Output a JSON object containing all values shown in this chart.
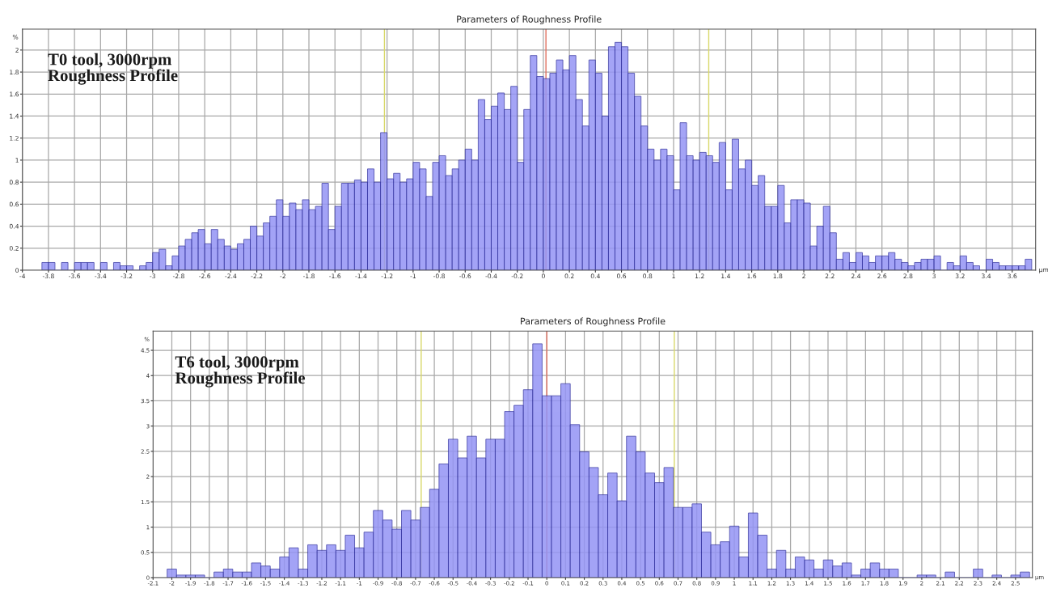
{
  "chart_data": [
    {
      "type": "histogram",
      "title": "Parameters of Roughness Profile",
      "xlabel": "μm",
      "ylabel": "%",
      "annotations": [
        "T0 tool, 3000rpm\nRoughness Profile"
      ],
      "color": "#9494f5",
      "bins": [
        -3.85,
        -3.8,
        -3.75,
        -3.7,
        -3.65,
        -3.6,
        -3.55,
        -3.5,
        -3.45,
        -3.4,
        -3.35,
        -3.3,
        -3.25,
        -3.2,
        -3.15,
        -3.1,
        -3.05,
        -3,
        -2.95,
        -2.9,
        -2.85,
        -2.8,
        -2.75,
        -2.7,
        -2.65,
        -2.6,
        -2.55,
        -2.5,
        -2.45,
        -2.4,
        -2.35,
        -2.3,
        -2.25,
        -2.2,
        -2.15,
        -2.1,
        -2.05,
        -2,
        -1.95,
        -1.9,
        -1.85,
        -1.8,
        -1.75,
        -1.7,
        -1.65,
        -1.6,
        -1.55,
        -1.5,
        -1.45,
        -1.4,
        -1.35,
        -1.3,
        -1.25,
        -1.2,
        -1.15,
        -1.1,
        -1.05,
        -1,
        -0.95,
        -0.9,
        -0.85,
        -0.8,
        -0.75,
        -0.7,
        -0.65,
        -0.6,
        -0.55,
        -0.5,
        -0.45,
        -0.4,
        -0.35,
        -0.3,
        -0.25,
        -0.2,
        -0.15,
        -0.1,
        -0.05,
        0,
        0.05,
        0.1,
        0.15,
        0.2,
        0.25,
        0.3,
        0.35,
        0.4,
        0.45,
        0.5,
        0.55,
        0.6,
        0.65,
        0.7,
        0.75,
        0.8,
        0.85,
        0.9,
        0.95,
        1,
        1.05,
        1.1,
        1.15,
        1.2,
        1.25,
        1.3,
        1.35,
        1.4,
        1.45,
        1.5,
        1.55,
        1.6,
        1.65,
        1.7,
        1.75,
        1.8,
        1.85,
        1.9,
        1.95,
        2,
        2.05,
        2.1,
        2.15,
        2.2,
        2.25,
        2.3,
        2.35,
        2.4,
        2.45,
        2.5,
        2.55,
        2.6,
        2.65,
        2.7,
        2.75,
        2.8,
        2.85,
        2.9,
        2.95,
        3,
        3.05,
        3.1,
        3.15,
        3.2,
        3.25,
        3.3,
        3.35,
        3.4,
        3.45,
        3.5,
        3.55,
        3.6,
        3.65,
        3.7,
        3.75
      ],
      "values": [
        0.07,
        0.07,
        0,
        0.07,
        0,
        0.07,
        0.07,
        0.07,
        0,
        0.07,
        0,
        0.07,
        0.04,
        0.04,
        0,
        0.04,
        0.07,
        0.16,
        0.19,
        0.04,
        0.13,
        0.22,
        0.28,
        0.34,
        0.37,
        0.24,
        0.37,
        0.28,
        0.22,
        0.19,
        0.24,
        0.28,
        0.4,
        0.31,
        0.43,
        0.49,
        0.64,
        0.49,
        0.61,
        0.55,
        0.64,
        0.55,
        0.58,
        0.79,
        0.37,
        0.58,
        0.79,
        0.79,
        0.82,
        0.8,
        0.92,
        0.8,
        1.25,
        0.83,
        0.88,
        0.8,
        0.83,
        0.98,
        0.92,
        0.67,
        0.98,
        1.04,
        0.86,
        0.92,
        1,
        1.1,
        1,
        1.55,
        1.37,
        1.49,
        1.61,
        1.46,
        1.67,
        0.98,
        1.46,
        1.95,
        1.76,
        1.74,
        1.79,
        1.91,
        1.82,
        1.95,
        1.55,
        1.31,
        1.91,
        1.79,
        1.4,
        2.03,
        2.07,
        2.03,
        1.79,
        1.58,
        1.31,
        1.1,
        1,
        1.1,
        1.04,
        0.73,
        1.34,
        1.04,
        1,
        1.07,
        1.04,
        0.98,
        1.16,
        0.73,
        1.19,
        0.92,
        1,
        0.77,
        0.86,
        0.58,
        0.58,
        0.77,
        0.43,
        0.64,
        0.64,
        0.61,
        0.22,
        0.4,
        0.58,
        0.34,
        0.1,
        0.16,
        0.07,
        0.16,
        0.13,
        0.07,
        0.13,
        0.13,
        0.16,
        0.1,
        0.07,
        0.04,
        0.07,
        0.1,
        0.1,
        0.13,
        0,
        0.07,
        0.04,
        0.13,
        0.07,
        0.04,
        0,
        0.1,
        0.07,
        0.04,
        0.04,
        0.04,
        0.04,
        0.1
      ],
      "xlim": [
        -4,
        3.78
      ],
      "ylim": [
        0,
        2.19
      ],
      "xticks": [
        -4,
        -3.8,
        -3.6,
        -3.4,
        -3.2,
        -3,
        -2.8,
        -2.6,
        -2.4,
        -2.2,
        -2,
        -1.8,
        -1.6,
        -1.4,
        -1.2,
        -1,
        -0.8,
        -0.6,
        -0.4,
        -0.2,
        0,
        0.2,
        0.4,
        0.6,
        0.8,
        1,
        1.2,
        1.4,
        1.6,
        1.8,
        2,
        2.2,
        2.4,
        2.6,
        2.8,
        3,
        3.2,
        3.4,
        3.6
      ],
      "yticks": [
        0,
        0.2,
        0.4,
        0.6,
        0.8,
        1,
        1.2,
        1.4,
        1.6,
        1.8,
        2
      ],
      "grid": true,
      "ref_lines": [
        {
          "axis": "x",
          "value": -1.22,
          "color": "#d8d86a"
        },
        {
          "axis": "x",
          "value": 0.02,
          "color": "#e07060"
        },
        {
          "axis": "x",
          "value": 1.27,
          "color": "#d8d86a"
        }
      ]
    },
    {
      "type": "histogram",
      "title": "Parameters of Roughness Profile",
      "xlabel": "μm",
      "ylabel": "%",
      "annotations": [
        "T6 tool, 3000rpm\nRoughness Profile"
      ],
      "color": "#9494f5",
      "bins": [
        -2.025,
        -1.975,
        -1.925,
        -1.875,
        -1.825,
        -1.775,
        -1.725,
        -1.675,
        -1.625,
        -1.575,
        -1.525,
        -1.475,
        -1.425,
        -1.375,
        -1.325,
        -1.275,
        -1.225,
        -1.175,
        -1.125,
        -1.075,
        -1.025,
        -0.975,
        -0.925,
        -0.875,
        -0.825,
        -0.775,
        -0.725,
        -0.675,
        -0.625,
        -0.575,
        -0.525,
        -0.475,
        -0.425,
        -0.375,
        -0.325,
        -0.275,
        -0.225,
        -0.175,
        -0.125,
        -0.075,
        -0.025,
        0.025,
        0.075,
        0.125,
        0.175,
        0.225,
        0.275,
        0.325,
        0.375,
        0.425,
        0.475,
        0.525,
        0.575,
        0.625,
        0.675,
        0.725,
        0.775,
        0.825,
        0.875,
        0.925,
        0.975,
        1.025,
        1.075,
        1.125,
        1.175,
        1.225,
        1.275,
        1.325,
        1.375,
        1.425,
        1.475,
        1.525,
        1.575,
        1.625,
        1.675,
        1.725,
        1.775,
        1.825,
        1.875,
        1.925,
        1.975,
        2.025,
        2.075,
        2.125,
        2.175,
        2.225,
        2.275,
        2.325,
        2.375,
        2.425,
        2.475,
        2.525,
        2.575
      ],
      "values": [
        0.17,
        0.05,
        0.05,
        0.05,
        0,
        0.11,
        0.17,
        0.11,
        0.11,
        0.29,
        0.23,
        0.17,
        0.41,
        0.59,
        0.17,
        0.65,
        0.54,
        0.65,
        0.54,
        0.84,
        0.59,
        0.9,
        1.33,
        1.14,
        0.96,
        1.33,
        1.14,
        1.39,
        1.75,
        2.25,
        2.74,
        2.37,
        2.8,
        2.37,
        2.74,
        2.74,
        3.29,
        3.41,
        3.72,
        4.63,
        3.6,
        3.6,
        3.84,
        3.03,
        2.49,
        2.18,
        1.64,
        2.07,
        1.52,
        2.8,
        2.49,
        2.07,
        1.88,
        2.18,
        1.39,
        1.39,
        1.46,
        0.9,
        0.65,
        0.71,
        1.02,
        0.41,
        1.28,
        0.84,
        0.17,
        0.54,
        0.17,
        0.41,
        0.35,
        0.17,
        0.35,
        0.23,
        0.29,
        0.05,
        0.17,
        0.29,
        0.17,
        0.17,
        0,
        0,
        0.05,
        0.05,
        0,
        0.11,
        0,
        0,
        0.17,
        0,
        0.05,
        0,
        0.05,
        0.11
      ],
      "xlim": [
        -2.1,
        2.59
      ],
      "ylim": [
        0,
        4.88
      ],
      "xticks": [
        -2.1,
        -2,
        -1.9,
        -1.8,
        -1.7,
        -1.6,
        -1.5,
        -1.4,
        -1.3,
        -1.2,
        -1.1,
        -1,
        -0.9,
        -0.8,
        -0.7,
        -0.6,
        -0.5,
        -0.4,
        -0.3,
        -0.2,
        -0.1,
        0,
        0.1,
        0.2,
        0.3,
        0.4,
        0.5,
        0.6,
        0.7,
        0.8,
        0.9,
        1,
        1.1,
        1.2,
        1.3,
        1.4,
        1.5,
        1.6,
        1.7,
        1.8,
        1.9,
        2,
        2.1,
        2.2,
        2.3,
        2.4,
        2.5
      ],
      "yticks": [
        0,
        0.5,
        1,
        1.5,
        2,
        2.5,
        3,
        3.5,
        4,
        4.5
      ],
      "grid": true,
      "ref_lines": [
        {
          "axis": "x",
          "value": -0.67,
          "color": "#d8d86a"
        },
        {
          "axis": "x",
          "value": 0.0,
          "color": "#e07060"
        },
        {
          "axis": "x",
          "value": 0.68,
          "color": "#d8d86a"
        }
      ]
    }
  ]
}
